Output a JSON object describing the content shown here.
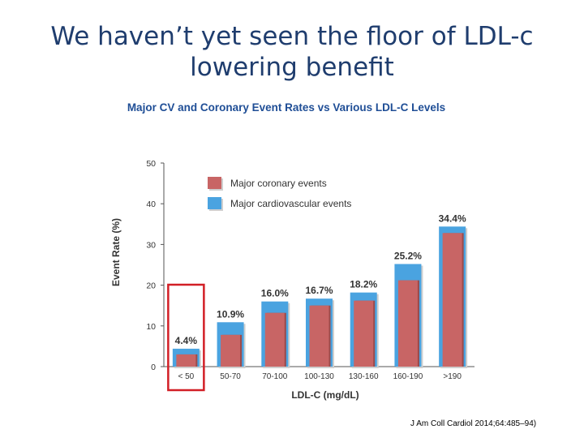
{
  "slide": {
    "title_line1": "We haven’t yet seen the floor of LDL-c",
    "title_line2": "lowering benefit",
    "citation": "J Am Coll Cardiol 2014;64:485–94)"
  },
  "colors": {
    "title": "#1f3d6e",
    "chart_title": "#1f4e96",
    "coronary": "#c86565",
    "cardiovascular": "#4aa3e0",
    "highlight": "#d21f26"
  },
  "chart_data": {
    "type": "bar",
    "title": "Major CV and Coronary Event Rates vs Various LDL-C Levels",
    "xlabel": "LDL-C (mg/dL)",
    "ylabel": "Event Rate (%)",
    "ylim": [
      0,
      50
    ],
    "yticks": [
      0,
      10,
      20,
      30,
      40,
      50
    ],
    "categories": [
      "< 50",
      "50-70",
      "70-100",
      "100-130",
      "130-160",
      "160-190",
      ">190"
    ],
    "series": [
      {
        "name": "Major coronary events",
        "values": [
          3.0,
          7.8,
          13.2,
          15.0,
          16.2,
          21.2,
          32.8
        ]
      },
      {
        "name": "Major cardiovascular events",
        "values": [
          4.4,
          10.9,
          16.0,
          16.7,
          18.2,
          25.2,
          34.4
        ]
      }
    ],
    "data_labels": [
      "4.4%",
      "10.9%",
      "16.0%",
      "16.7%",
      "18.2%",
      "25.2%",
      "34.4%"
    ],
    "highlighted_category": "< 50",
    "legend_position": "top-left"
  }
}
